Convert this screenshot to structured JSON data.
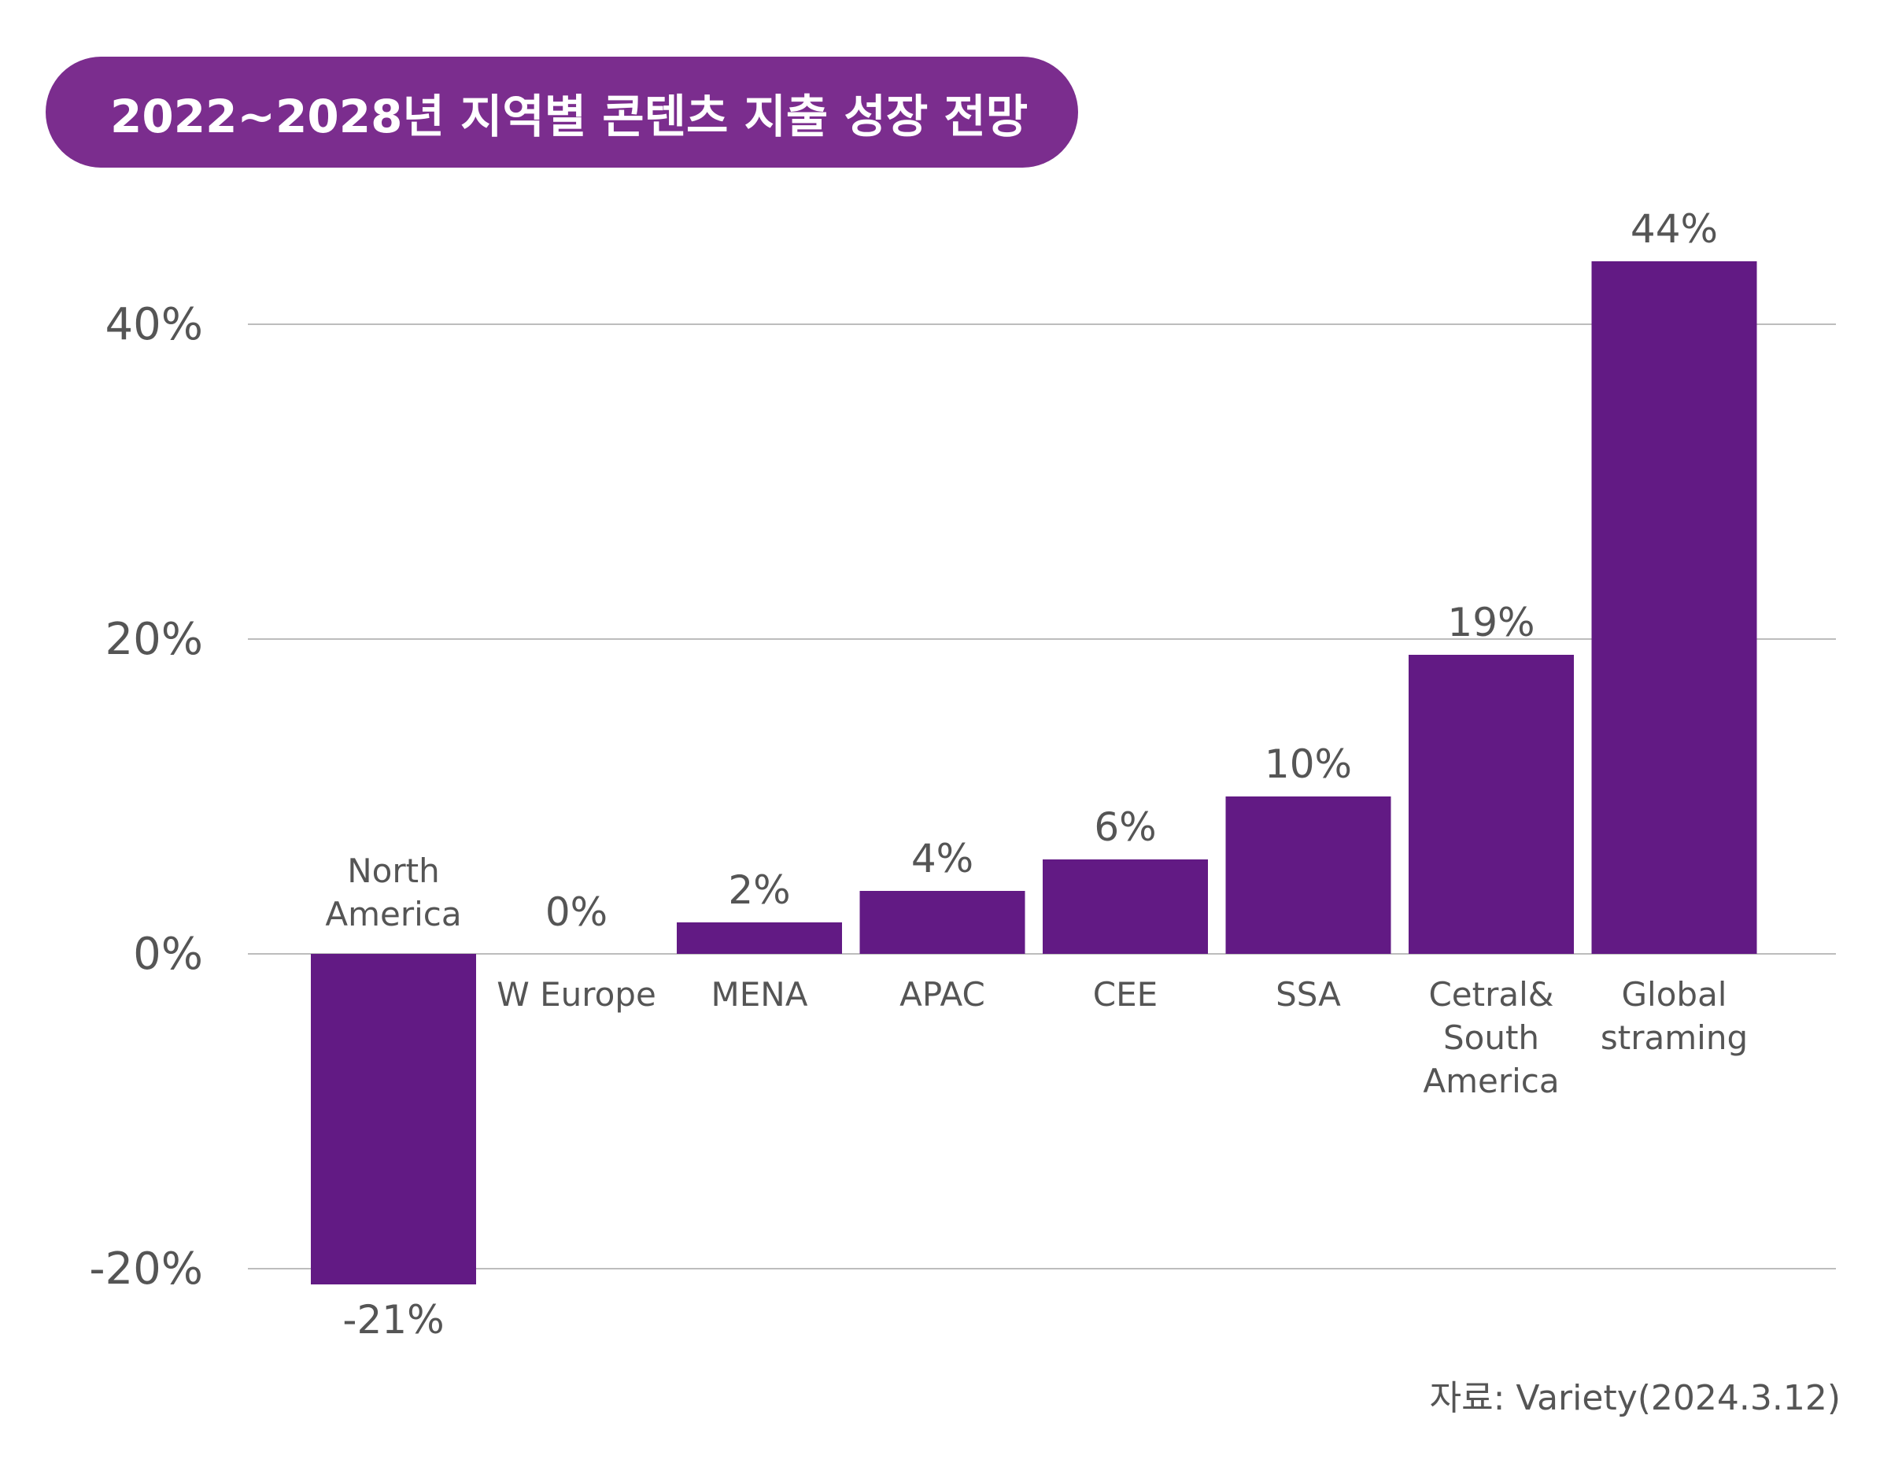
{
  "title": "2022~2028년 지역별 콘텐츠 지출 성장 전망",
  "source": "자료: Variety(2024.3.12)",
  "colors": {
    "bar": "#621a84",
    "title_bg": "#7b2d8e",
    "grid": "#bdbdbd",
    "text": "#555555"
  },
  "chart_data": {
    "type": "bar",
    "categories": [
      [
        "North",
        "America"
      ],
      [
        "W Europe"
      ],
      [
        "MENA"
      ],
      [
        "APAC"
      ],
      [
        "CEE"
      ],
      [
        "SSA"
      ],
      [
        "Cetral&",
        "South",
        "America"
      ],
      [
        "Global",
        "straming"
      ]
    ],
    "values": [
      -21,
      0,
      2,
      4,
      6,
      10,
      19,
      44
    ],
    "value_labels": [
      "-21%",
      "0%",
      "2%",
      "4%",
      "6%",
      "10%",
      "19%",
      "44%"
    ],
    "yticks": [
      {
        "value": -20,
        "label": "-20%"
      },
      {
        "value": 0,
        "label": "0%"
      },
      {
        "value": 20,
        "label": "20%"
      },
      {
        "value": 40,
        "label": "40%"
      }
    ],
    "ylim": [
      -20,
      40
    ],
    "grid": true,
    "legend": "none"
  }
}
